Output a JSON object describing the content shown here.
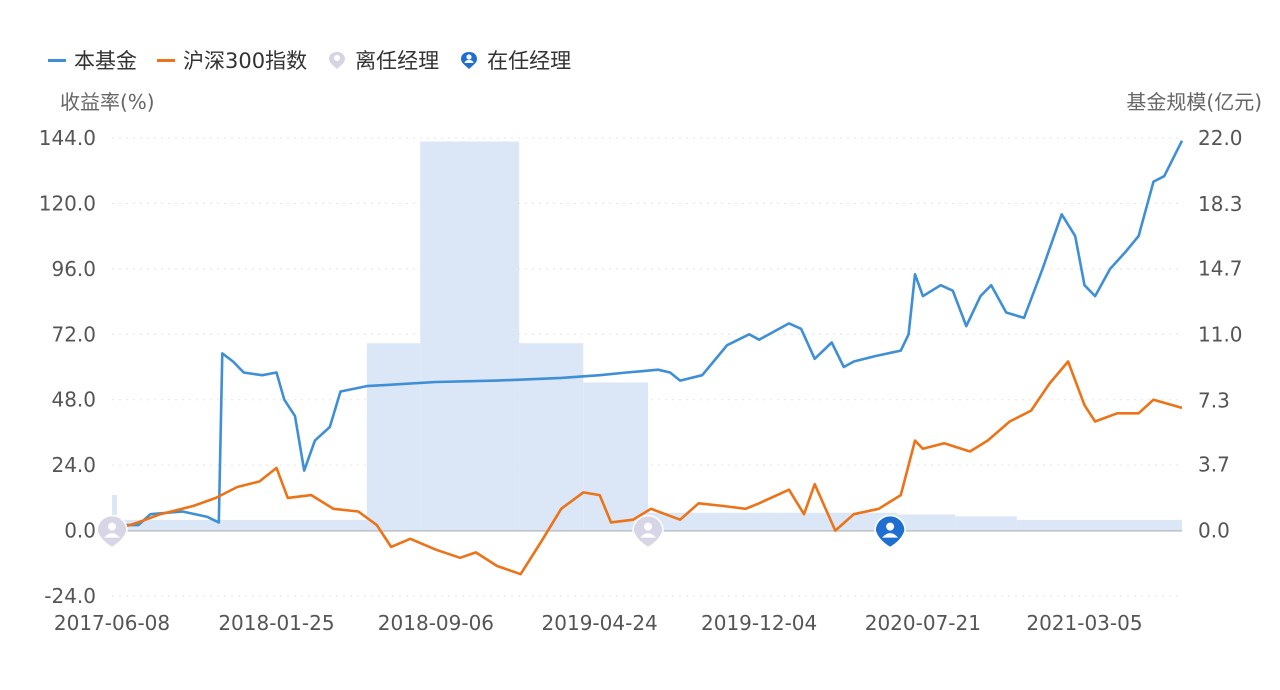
{
  "legend": {
    "fund": "本基金",
    "index": "沪深300指数",
    "former_manager": "离任经理",
    "current_manager": "在任经理"
  },
  "colors": {
    "fund": "#3f8fd7",
    "index": "#ec7317",
    "scale": "#dbe6f7",
    "former_manager": "#c5c5d8",
    "current_manager": "#1f6fd1"
  },
  "chart_data": {
    "type": "line",
    "left_axis_title": "收益率(%)",
    "right_axis_title": "基金规模(亿元)",
    "ylim": [
      -24,
      144
    ],
    "y_ticks": [
      "144.0",
      "120.0",
      "96.0",
      "72.0",
      "48.0",
      "24.0",
      "0.0",
      "-24.0"
    ],
    "y2lim": [
      0,
      22
    ],
    "y2_ticks": [
      "22.0",
      "18.3",
      "14.7",
      "11.0",
      "7.3",
      "3.7",
      "0.0"
    ],
    "x_ticks": [
      "2017-06-08",
      "2018-01-25",
      "2018-09-06",
      "2019-04-24",
      "2019-12-04",
      "2020-07-21",
      "2021-03-05"
    ],
    "x_range": [
      "2017-06-08",
      "2021-07-20"
    ],
    "series": [
      {
        "name": "本基金",
        "points": [
          [
            "2017-06-08",
            2
          ],
          [
            "2017-07-15",
            2
          ],
          [
            "2017-08-01",
            6
          ],
          [
            "2017-09-15",
            7
          ],
          [
            "2017-10-20",
            5
          ],
          [
            "2017-11-05",
            3
          ],
          [
            "2017-11-10",
            65
          ],
          [
            "2017-11-25",
            62
          ],
          [
            "2017-12-10",
            58
          ],
          [
            "2018-01-05",
            57
          ],
          [
            "2018-01-25",
            58
          ],
          [
            "2018-02-05",
            48
          ],
          [
            "2018-02-20",
            42
          ],
          [
            "2018-03-05",
            22
          ],
          [
            "2018-03-20",
            33
          ],
          [
            "2018-04-10",
            38
          ],
          [
            "2018-04-25",
            51
          ],
          [
            "2018-06-01",
            53
          ],
          [
            "2018-09-06",
            54.5
          ],
          [
            "2018-12-01",
            55
          ],
          [
            "2019-03-01",
            56
          ],
          [
            "2019-04-24",
            57
          ],
          [
            "2019-06-01",
            58
          ],
          [
            "2019-07-15",
            59
          ],
          [
            "2019-08-01",
            58
          ],
          [
            "2019-08-15",
            55
          ],
          [
            "2019-09-15",
            57
          ],
          [
            "2019-10-01",
            62
          ],
          [
            "2019-10-20",
            68
          ],
          [
            "2019-11-20",
            72
          ],
          [
            "2019-12-04",
            70
          ],
          [
            "2020-01-15",
            76
          ],
          [
            "2020-02-01",
            74
          ],
          [
            "2020-02-20",
            63
          ],
          [
            "2020-03-15",
            69
          ],
          [
            "2020-04-01",
            60
          ],
          [
            "2020-04-15",
            62
          ],
          [
            "2020-05-15",
            64
          ],
          [
            "2020-06-20",
            66
          ],
          [
            "2020-07-01",
            72
          ],
          [
            "2020-07-10",
            94
          ],
          [
            "2020-07-21",
            86
          ],
          [
            "2020-08-15",
            90
          ],
          [
            "2020-09-01",
            88
          ],
          [
            "2020-09-20",
            75
          ],
          [
            "2020-10-10",
            86
          ],
          [
            "2020-10-25",
            90
          ],
          [
            "2020-11-15",
            80
          ],
          [
            "2020-12-10",
            78
          ],
          [
            "2021-01-05",
            96
          ],
          [
            "2021-02-01",
            116
          ],
          [
            "2021-02-20",
            108
          ],
          [
            "2021-03-05",
            90
          ],
          [
            "2021-03-20",
            86
          ],
          [
            "2021-04-10",
            96
          ],
          [
            "2021-05-01",
            102
          ],
          [
            "2021-05-20",
            108
          ],
          [
            "2021-06-10",
            128
          ],
          [
            "2021-06-25",
            130
          ],
          [
            "2021-07-20",
            143
          ]
        ]
      },
      {
        "name": "沪深300指数",
        "points": [
          [
            "2017-06-08",
            0
          ],
          [
            "2017-07-15",
            3
          ],
          [
            "2017-08-15",
            6
          ],
          [
            "2017-09-30",
            9
          ],
          [
            "2017-11-01",
            12
          ],
          [
            "2017-12-01",
            16
          ],
          [
            "2018-01-01",
            18
          ],
          [
            "2018-01-25",
            23
          ],
          [
            "2018-02-10",
            12
          ],
          [
            "2018-03-15",
            13
          ],
          [
            "2018-04-15",
            8
          ],
          [
            "2018-05-20",
            7
          ],
          [
            "2018-06-15",
            2
          ],
          [
            "2018-07-05",
            -6
          ],
          [
            "2018-08-01",
            -3
          ],
          [
            "2018-09-06",
            -7
          ],
          [
            "2018-10-10",
            -10
          ],
          [
            "2018-11-01",
            -8
          ],
          [
            "2018-12-01",
            -13
          ],
          [
            "2019-01-03",
            -16
          ],
          [
            "2019-02-01",
            -4
          ],
          [
            "2019-03-01",
            8
          ],
          [
            "2019-04-01",
            14
          ],
          [
            "2019-04-24",
            13
          ],
          [
            "2019-05-10",
            3
          ],
          [
            "2019-06-10",
            4
          ],
          [
            "2019-07-05",
            8
          ],
          [
            "2019-08-15",
            4
          ],
          [
            "2019-09-10",
            10
          ],
          [
            "2019-10-15",
            9
          ],
          [
            "2019-11-15",
            8
          ],
          [
            "2019-12-04",
            10
          ],
          [
            "2020-01-15",
            15
          ],
          [
            "2020-02-05",
            6
          ],
          [
            "2020-02-20",
            17
          ],
          [
            "2020-03-20",
            0
          ],
          [
            "2020-04-15",
            6
          ],
          [
            "2020-05-20",
            8
          ],
          [
            "2020-06-20",
            13
          ],
          [
            "2020-07-10",
            33
          ],
          [
            "2020-07-21",
            30
          ],
          [
            "2020-08-20",
            32
          ],
          [
            "2020-09-25",
            29
          ],
          [
            "2020-10-20",
            33
          ],
          [
            "2020-11-20",
            40
          ],
          [
            "2020-12-20",
            44
          ],
          [
            "2021-01-15",
            54
          ],
          [
            "2021-02-10",
            62
          ],
          [
            "2021-03-05",
            46
          ],
          [
            "2021-03-20",
            40
          ],
          [
            "2021-04-20",
            43
          ],
          [
            "2021-05-20",
            43
          ],
          [
            "2021-06-10",
            48
          ],
          [
            "2021-07-20",
            45
          ]
        ]
      }
    ],
    "scale_series": {
      "name": "基金规模",
      "steps": [
        [
          "2017-06-08",
          2.0
        ],
        [
          "2017-06-15",
          0.6
        ],
        [
          "2017-11-10",
          0.6
        ],
        [
          "2018-06-01",
          10.5
        ],
        [
          "2018-08-15",
          21.8
        ],
        [
          "2019-01-01",
          10.5
        ],
        [
          "2019-04-01",
          8.3
        ],
        [
          "2019-07-01",
          1.0
        ],
        [
          "2020-06-15",
          0.9
        ],
        [
          "2020-09-05",
          0.8
        ],
        [
          "2020-11-30",
          0.6
        ],
        [
          "2021-07-20",
          0.6
        ]
      ]
    },
    "manager_markers": [
      {
        "type": "former",
        "date": "2017-06-08"
      },
      {
        "type": "former",
        "date": "2019-07-01"
      },
      {
        "type": "current",
        "date": "2020-06-05"
      }
    ],
    "grid": true,
    "legend_position": "top-left"
  }
}
